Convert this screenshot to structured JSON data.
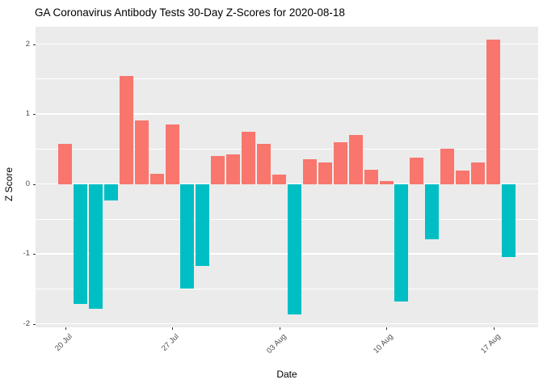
{
  "title": "GA Coronavirus Antibody Tests 30-Day Z-Scores for 2020-08-18",
  "chart_data": {
    "type": "bar",
    "title": "GA Coronavirus Antibody Tests 30-Day Z-Scores for 2020-08-18",
    "xlabel": "Date",
    "ylabel": "Z Score",
    "ylim": [
      -2.05,
      2.25
    ],
    "yticks": [
      2,
      1,
      0,
      -1,
      -2
    ],
    "ytick_labels": [
      "2",
      "1",
      "0",
      "-1",
      "-2"
    ],
    "minor_yticks": [
      1.5,
      0.5,
      -0.5,
      -1.5
    ],
    "grid": "on",
    "legend_position": "none",
    "categories": [
      "2020-07-20",
      "2020-07-21",
      "2020-07-22",
      "2020-07-23",
      "2020-07-24",
      "2020-07-25",
      "2020-07-26",
      "2020-07-27",
      "2020-07-28",
      "2020-07-29",
      "2020-07-30",
      "2020-07-31",
      "2020-08-01",
      "2020-08-02",
      "2020-08-03",
      "2020-08-04",
      "2020-08-05",
      "2020-08-06",
      "2020-08-07",
      "2020-08-08",
      "2020-08-09",
      "2020-08-10",
      "2020-08-11",
      "2020-08-12",
      "2020-08-13",
      "2020-08-14",
      "2020-08-15",
      "2020-08-16",
      "2020-08-17",
      "2020-08-18"
    ],
    "values": [
      0.57,
      -1.72,
      -1.79,
      -0.24,
      1.55,
      0.91,
      0.15,
      0.85,
      -1.5,
      -1.17,
      0.4,
      0.42,
      0.75,
      0.57,
      0.13,
      -1.87,
      0.35,
      0.31,
      0.6,
      0.7,
      0.2,
      0.04,
      -1.68,
      0.38,
      -0.79,
      0.5,
      0.19,
      0.31,
      2.06,
      -1.05
    ],
    "xticks": [
      {
        "index": 0,
        "label": "20 Jul"
      },
      {
        "index": 7,
        "label": "27 Jul"
      },
      {
        "index": 14,
        "label": "03 Aug"
      },
      {
        "index": 21,
        "label": "10 Aug"
      },
      {
        "index": 28,
        "label": "17 Aug"
      }
    ],
    "colors": {
      "positive_bar": "#F8766D",
      "negative_bar": "#00BFC4",
      "panel_background": "#EBEBEB",
      "gridline": "#FFFFFF",
      "tick_label_text": "#4D4D4D",
      "axis_title_text": "#000000",
      "title_text": "#000000",
      "tick_mark": "#333333"
    }
  }
}
